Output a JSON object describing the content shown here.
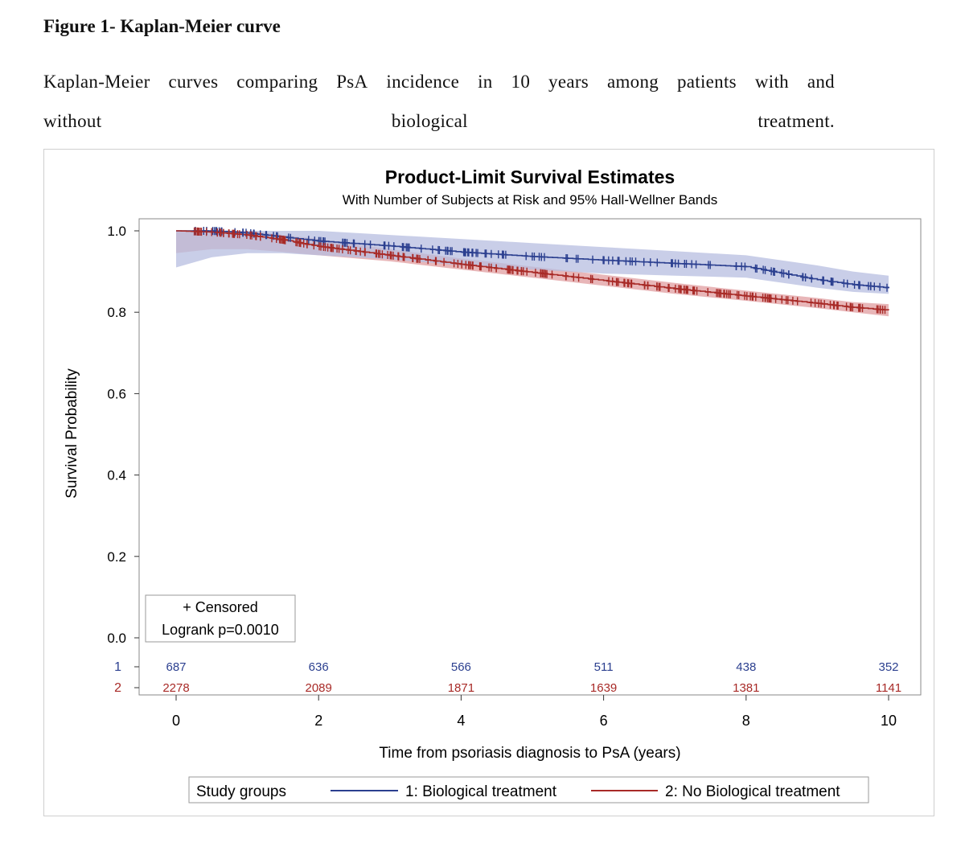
{
  "figure_heading": "Figure 1- Kaplan-Meier curve",
  "caption": {
    "line1": [
      "Kaplan-Meier",
      "curves",
      "comparing",
      "PsA",
      "incidence",
      "in",
      "10",
      "years",
      "among",
      "patients",
      "with",
      "and"
    ],
    "line2": [
      "without",
      "biological",
      "treatment."
    ]
  },
  "colors": {
    "group1": "#2b3f8f",
    "group1_band": "#b7bde0",
    "group2": "#a82a27",
    "group2_band": "#e2a4a6"
  },
  "chart_data": {
    "type": "line",
    "title": "Product-Limit Survival Estimates",
    "subtitle": "With Number of Subjects at Risk and 95% Hall-Wellner Bands",
    "xlabel": "Time from psoriasis diagnosis to PsA (years)",
    "ylabel": "Survival Probability",
    "xlim": [
      0,
      10
    ],
    "ylim": [
      0,
      1
    ],
    "x_ticks": [
      "0",
      "2",
      "4",
      "6",
      "8",
      "10"
    ],
    "y_ticks": [
      "0.0",
      "0.2",
      "0.4",
      "0.6",
      "0.8",
      "1.0"
    ],
    "grid": false,
    "censored_label": "+ Censored",
    "logrank_label": "Logrank p=0.0010",
    "legend": {
      "title": "Study groups",
      "placement": "bottom"
    },
    "series": [
      {
        "name": "1: Biological treatment",
        "x": [
          0,
          0.5,
          1,
          1.5,
          2,
          3,
          4,
          5,
          6,
          7,
          8,
          9,
          9.5,
          10
        ],
        "y": [
          1.0,
          1.0,
          0.995,
          0.985,
          0.975,
          0.963,
          0.948,
          0.937,
          0.928,
          0.92,
          0.912,
          0.88,
          0.868,
          0.86
        ],
        "lower": [
          0.91,
          0.935,
          0.945,
          0.945,
          0.94,
          0.93,
          0.915,
          0.905,
          0.895,
          0.89,
          0.885,
          0.86,
          0.85,
          0.845
        ],
        "upper": [
          1.0,
          1.0,
          1.0,
          1.0,
          1.0,
          0.99,
          0.98,
          0.97,
          0.96,
          0.95,
          0.94,
          0.915,
          0.9,
          0.89
        ]
      },
      {
        "name": "2: No Biological treatment",
        "x": [
          0,
          0.5,
          1,
          1.5,
          2,
          3,
          4,
          5,
          6,
          7,
          8,
          9,
          9.5,
          10
        ],
        "y": [
          1.0,
          0.997,
          0.99,
          0.978,
          0.962,
          0.94,
          0.918,
          0.898,
          0.878,
          0.858,
          0.84,
          0.822,
          0.812,
          0.805
        ],
        "lower": [
          0.945,
          0.955,
          0.955,
          0.948,
          0.94,
          0.925,
          0.905,
          0.885,
          0.865,
          0.845,
          0.828,
          0.81,
          0.8,
          0.79
        ],
        "upper": [
          1.0,
          1.0,
          1.0,
          0.99,
          0.98,
          0.955,
          0.932,
          0.912,
          0.892,
          0.872,
          0.853,
          0.835,
          0.825,
          0.82
        ]
      }
    ],
    "at_risk": {
      "groups": [
        "1",
        "2"
      ],
      "times": [
        0,
        2,
        4,
        6,
        8,
        10
      ],
      "values": [
        [
          "687",
          "636",
          "566",
          "511",
          "438",
          "352"
        ],
        [
          "2278",
          "2089",
          "1871",
          "1639",
          "1381",
          "1141"
        ]
      ]
    }
  }
}
